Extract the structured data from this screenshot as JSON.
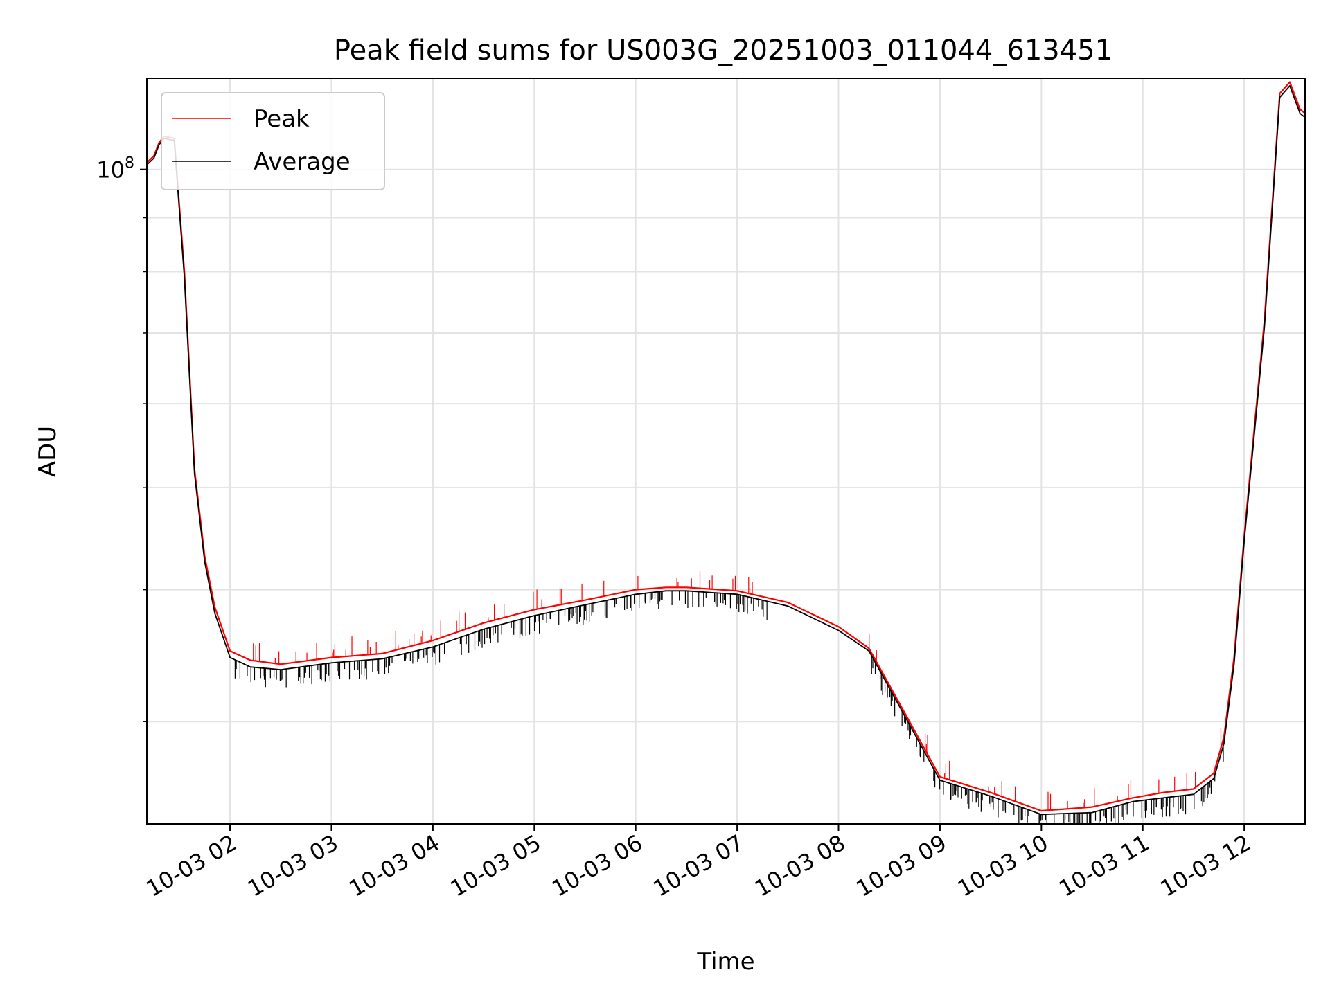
{
  "chart_data": {
    "type": "line",
    "title": "Peak field sums for US003G_20251003_011044_613451",
    "xlabel": "Time",
    "ylabel": "ADU",
    "yscale": "log",
    "grid": true,
    "legend_position": "top-left",
    "x_unit": "hours since 10-03 00:00",
    "xlim": [
      1.18,
      12.6
    ],
    "ylim": [
      24000000,
      122000000
    ],
    "x_ticks": [
      {
        "x": 2,
        "label": "10-03 02"
      },
      {
        "x": 3,
        "label": "10-03 03"
      },
      {
        "x": 4,
        "label": "10-03 04"
      },
      {
        "x": 5,
        "label": "10-03 05"
      },
      {
        "x": 6,
        "label": "10-03 06"
      },
      {
        "x": 7,
        "label": "10-03 07"
      },
      {
        "x": 8,
        "label": "10-03 08"
      },
      {
        "x": 9,
        "label": "10-03 09"
      },
      {
        "x": 10,
        "label": "10-03 10"
      },
      {
        "x": 11,
        "label": "10-03 11"
      },
      {
        "x": 12,
        "label": "10-03 12"
      }
    ],
    "y_major_tick": {
      "value": 100000000,
      "base": "10",
      "exp": "8"
    },
    "y_minor_ticks": [
      30000000,
      40000000,
      50000000,
      60000000,
      70000000,
      80000000,
      90000000
    ],
    "series": [
      {
        "name": "Peak",
        "color": "#ff0000",
        "x": [
          1.18,
          1.25,
          1.3,
          1.35,
          1.45,
          1.55,
          1.65,
          1.75,
          1.85,
          2.0,
          2.2,
          2.5,
          3.0,
          3.5,
          4.0,
          4.5,
          5.0,
          5.5,
          6.0,
          6.3,
          6.5,
          7.0,
          7.5,
          8.0,
          8.3,
          8.5,
          8.7,
          9.0,
          9.5,
          10.0,
          10.5,
          10.9,
          11.2,
          11.5,
          11.7,
          11.8,
          11.9,
          12.0,
          12.2,
          12.35,
          12.45,
          12.55,
          12.6
        ],
        "values": [
          101500000,
          103000000,
          106000000,
          107500000,
          107000000,
          80000000,
          52000000,
          43000000,
          38500000,
          35000000,
          34300000,
          34000000,
          34500000,
          34800000,
          35800000,
          37200000,
          38300000,
          39100000,
          40000000,
          40200000,
          40200000,
          39900000,
          38900000,
          36900000,
          35200000,
          32500000,
          30000000,
          26600000,
          25700000,
          24700000,
          24900000,
          25400000,
          25700000,
          25900000,
          26800000,
          29000000,
          34500000,
          45000000,
          72000000,
          118000000,
          121000000,
          114000000,
          113000000
        ]
      },
      {
        "name": "Average",
        "color": "#000000",
        "x": [
          1.18,
          1.25,
          1.3,
          1.35,
          1.45,
          1.55,
          1.65,
          1.75,
          1.85,
          2.0,
          2.2,
          2.5,
          3.0,
          3.5,
          4.0,
          4.5,
          5.0,
          5.5,
          6.0,
          6.3,
          6.5,
          7.0,
          7.5,
          8.0,
          8.3,
          8.5,
          8.7,
          9.0,
          9.5,
          10.0,
          10.5,
          10.9,
          11.2,
          11.5,
          11.7,
          11.8,
          11.9,
          12.0,
          12.2,
          12.35,
          12.45,
          12.55,
          12.6
        ],
        "values": [
          101000000,
          102500000,
          105500000,
          107000000,
          106500000,
          79000000,
          51500000,
          42500000,
          38000000,
          34500000,
          33800000,
          33600000,
          34100000,
          34400000,
          35300000,
          36700000,
          37800000,
          38700000,
          39600000,
          39900000,
          39900000,
          39600000,
          38600000,
          36600000,
          35000000,
          32300000,
          29800000,
          26400000,
          25500000,
          24500000,
          24600000,
          25200000,
          25400000,
          25600000,
          26500000,
          28600000,
          34000000,
          44500000,
          71000000,
          117000000,
          120000000,
          113000000,
          112000000
        ]
      }
    ]
  }
}
